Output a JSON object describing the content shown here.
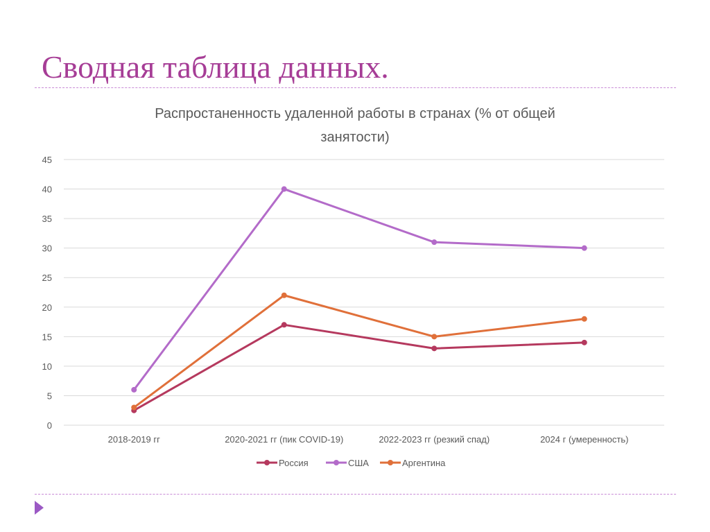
{
  "slide": {
    "title": "Сводная таблица данных."
  },
  "colors": {
    "title": "#a63d96",
    "rule": "#c98ad6",
    "marker": "#9b59c4"
  },
  "chart_data": {
    "type": "line",
    "title_lines": [
      "Распростаненность удаленной работы в странах (% от общей",
      "занятости)"
    ],
    "categories": [
      "2018-2019 гг",
      "2020-2021 гг (пик COVID-19)",
      "2022-2023 гг (резкий спад)",
      "2024 г (умеренность)"
    ],
    "ylim": [
      0,
      45
    ],
    "yticks": [
      0,
      5,
      10,
      15,
      20,
      25,
      30,
      35,
      40,
      45
    ],
    "grid": true,
    "legend_position": "bottom",
    "series": [
      {
        "name": "Россия",
        "color": "#b5395e",
        "values": [
          2.5,
          17,
          13,
          14
        ]
      },
      {
        "name": "США",
        "color": "#b36bc9",
        "values": [
          6,
          40,
          31,
          30
        ]
      },
      {
        "name": "Аргентина",
        "color": "#e0703a",
        "values": [
          3,
          22,
          15,
          18
        ]
      }
    ]
  }
}
